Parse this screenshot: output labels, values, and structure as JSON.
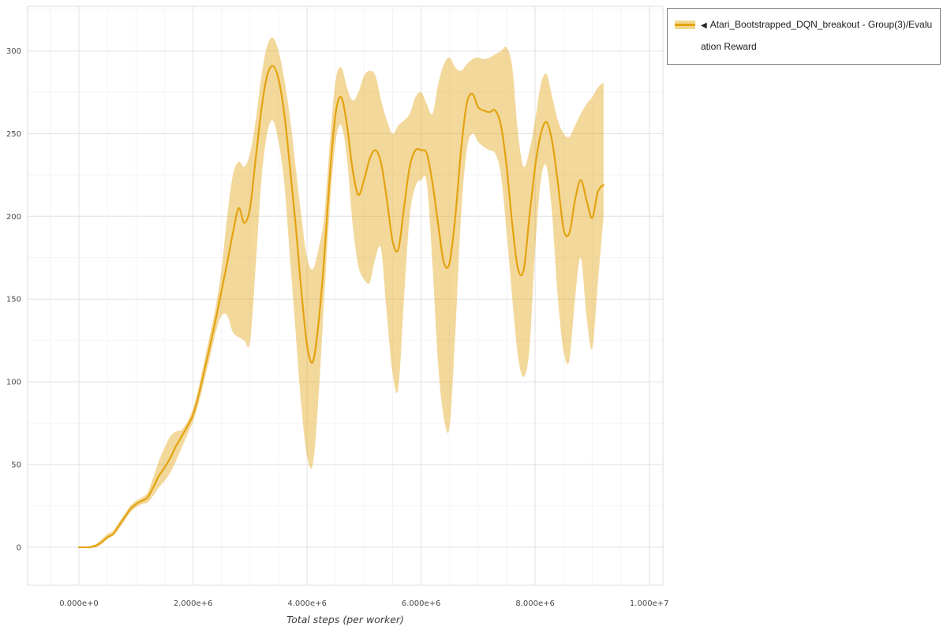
{
  "legend": {
    "marker": "◀",
    "label": "Atari_Bootstrapped_DQN_breakout - Group(3)/Evaluation Reward"
  },
  "chart_data": {
    "type": "line",
    "title": "",
    "xlabel": "Total steps (per worker)",
    "ylabel": "",
    "legend_position": "top-right-outside",
    "grid": {
      "on": true,
      "major_color": "#e3e3e3",
      "minor_color": "#f4f4f4",
      "minor_x_step": 500000,
      "minor_y_step": 25
    },
    "colors": {
      "line": "#e2a310",
      "band": "#e2a310",
      "band_opacity": 0.42
    },
    "x_tick_labels": [
      "0.000e+0",
      "2.000e+6",
      "4.000e+6",
      "6.000e+6",
      "8.000e+6",
      "1.000e+7"
    ],
    "x_tick_values": [
      0,
      2000000,
      4000000,
      6000000,
      8000000,
      10000000
    ],
    "y_tick_labels": [
      "0",
      "50",
      "100",
      "150",
      "200",
      "250",
      "300"
    ],
    "y_tick_values": [
      0,
      50,
      100,
      150,
      200,
      250,
      300
    ],
    "xlim": [
      -900000,
      10240000
    ],
    "ylim": [
      -23,
      327
    ],
    "series": [
      {
        "name": "Atari_Bootstrapped_DQN_breakout - Group(3)/Evaluation Reward",
        "x_start": 0,
        "x_step": 100000,
        "mean": [
          0,
          0,
          0,
          1,
          3,
          6,
          8,
          13,
          18,
          23,
          26,
          28,
          30,
          36,
          43,
          48,
          54,
          61,
          67,
          73,
          80,
          92,
          107,
          122,
          138,
          155,
          172,
          190,
          205,
          196,
          205,
          235,
          265,
          285,
          291,
          283,
          262,
          230,
          195,
          155,
          122,
          112,
          135,
          175,
          225,
          262,
          272,
          255,
          228,
          213,
          222,
          235,
          240,
          232,
          210,
          185,
          180,
          205,
          230,
          240,
          240,
          238,
          220,
          195,
          172,
          172,
          200,
          240,
          268,
          274,
          266,
          264,
          263,
          264,
          255,
          230,
          195,
          168,
          168,
          200,
          230,
          250,
          257,
          245,
          220,
          192,
          190,
          210,
          222,
          210,
          199,
          215,
          219
        ],
        "lower": [
          0,
          0,
          0,
          0,
          2,
          5,
          7,
          11,
          16,
          21,
          24,
          26,
          27,
          31,
          36,
          40,
          45,
          52,
          60,
          68,
          76,
          87,
          101,
          115,
          130,
          140,
          140,
          130,
          127,
          125,
          124,
          170,
          222,
          250,
          258,
          245,
          220,
          175,
          130,
          85,
          55,
          50,
          90,
          150,
          205,
          245,
          255,
          235,
          195,
          170,
          162,
          160,
          175,
          180,
          140,
          105,
          96,
          150,
          200,
          218,
          222,
          220,
          170,
          110,
          78,
          73,
          130,
          200,
          240,
          250,
          245,
          242,
          240,
          238,
          225,
          190,
          150,
          115,
          103,
          120,
          180,
          222,
          230,
          200,
          150,
          118,
          113,
          150,
          175,
          140,
          120,
          160,
          200
        ],
        "upper": [
          0,
          0,
          1,
          2,
          5,
          8,
          10,
          15,
          20,
          25,
          28,
          30,
          33,
          42,
          52,
          60,
          67,
          70,
          71,
          76,
          84,
          97,
          113,
          129,
          146,
          168,
          200,
          225,
          233,
          230,
          238,
          258,
          285,
          303,
          308,
          300,
          283,
          260,
          230,
          200,
          175,
          168,
          180,
          200,
          245,
          282,
          290,
          278,
          270,
          275,
          285,
          288,
          285,
          270,
          258,
          250,
          255,
          258,
          262,
          272,
          275,
          268,
          262,
          280,
          292,
          296,
          290,
          288,
          292,
          295,
          296,
          295,
          296,
          298,
          300,
          302,
          290,
          250,
          230,
          240,
          258,
          280,
          286,
          272,
          258,
          250,
          248,
          255,
          262,
          268,
          272,
          278,
          281
        ]
      }
    ]
  }
}
